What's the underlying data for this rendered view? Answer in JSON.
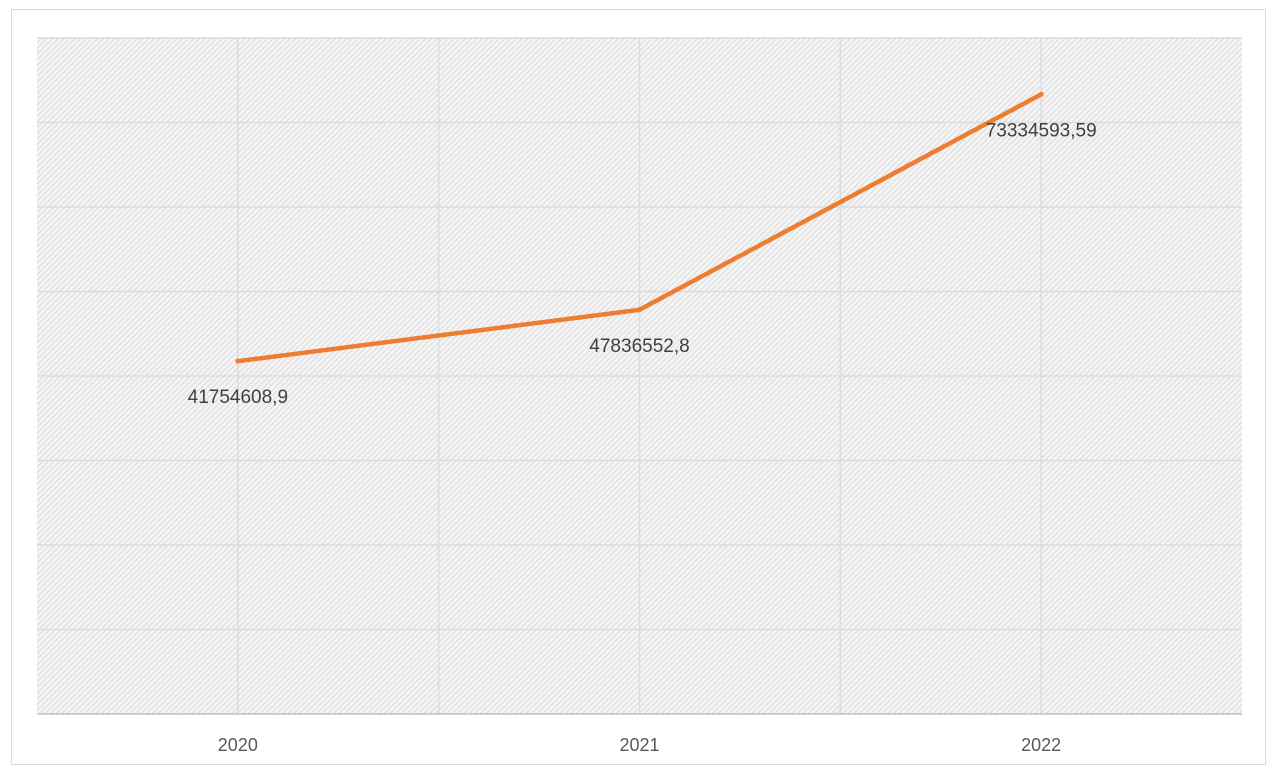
{
  "chart_data": {
    "type": "line",
    "title": "",
    "xlabel": "",
    "ylabel": "",
    "categories": [
      "2020",
      "2021",
      "2022"
    ],
    "series": [
      {
        "values": [
          41754608.9,
          47836552.8,
          73334593.59
        ],
        "data_labels": [
          "41754608,9",
          "47836552,8",
          "73334593,59"
        ],
        "color": "#ed7d31"
      }
    ],
    "ylim": [
      0,
      80000000
    ],
    "y_gridline_step": 10000000,
    "grid": true,
    "plot_background": "hatched-gray",
    "legend": "none"
  }
}
